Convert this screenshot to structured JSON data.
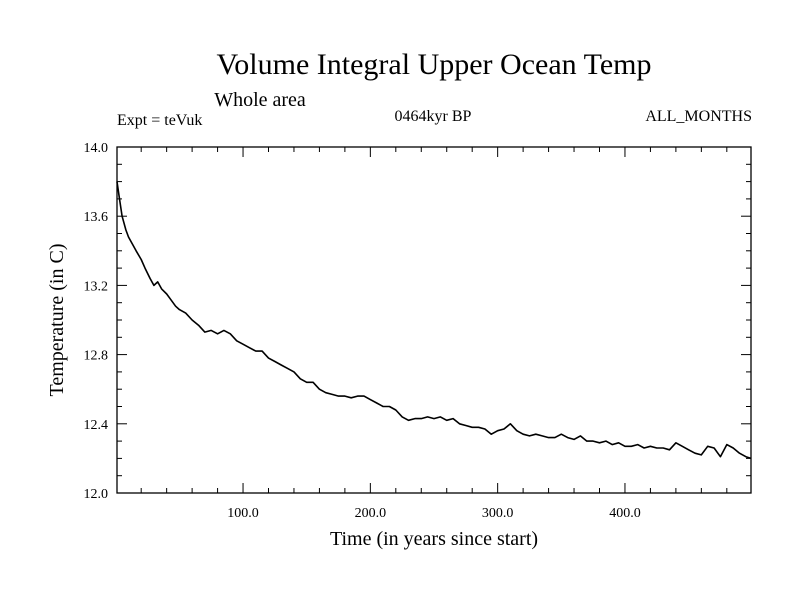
{
  "chart_data": {
    "type": "line",
    "title": "Volume Integral Upper Ocean Temp",
    "subtitle": "Whole area",
    "experiment": "Expt = teVuk",
    "period": "0464kyr BP",
    "months": "ALL_MONTHS",
    "xlabel": "Time (in years since start)",
    "ylabel": "Temperature (in C)",
    "xlim": [
      1,
      499
    ],
    "ylim": [
      12.0,
      14.0
    ],
    "x_ticks": [
      100,
      200,
      300,
      400
    ],
    "x_tick_labels": [
      "100.0",
      "200.0",
      "300.0",
      "400.0"
    ],
    "y_ticks": [
      12.0,
      12.4,
      12.8,
      13.2,
      13.6,
      14.0
    ],
    "y_tick_labels": [
      "12.0",
      "12.4",
      "12.8",
      "13.2",
      "13.6",
      "14.0"
    ],
    "grid": false,
    "series": [
      {
        "x": [
          1,
          3,
          5,
          8,
          10,
          13,
          16,
          20,
          23,
          27,
          30,
          33,
          36,
          40,
          43,
          47,
          50,
          55,
          60,
          65,
          70,
          75,
          80,
          85,
          90,
          95,
          100,
          105,
          110,
          115,
          120,
          125,
          130,
          135,
          140,
          145,
          150,
          155,
          160,
          165,
          170,
          175,
          180,
          185,
          190,
          195,
          200,
          205,
          210,
          215,
          220,
          225,
          230,
          235,
          240,
          245,
          250,
          255,
          260,
          265,
          270,
          275,
          280,
          285,
          290,
          295,
          300,
          305,
          310,
          315,
          320,
          325,
          330,
          335,
          340,
          345,
          350,
          355,
          360,
          365,
          370,
          375,
          380,
          385,
          390,
          395,
          400,
          405,
          410,
          415,
          420,
          425,
          430,
          435,
          440,
          445,
          450,
          455,
          460,
          465,
          470,
          475,
          480,
          485,
          490,
          495,
          499
        ],
        "y": [
          13.8,
          13.7,
          13.6,
          13.52,
          13.48,
          13.44,
          13.4,
          13.35,
          13.3,
          13.24,
          13.2,
          13.22,
          13.18,
          13.15,
          13.12,
          13.08,
          13.06,
          13.04,
          13.0,
          12.97,
          12.93,
          12.94,
          12.92,
          12.94,
          12.92,
          12.88,
          12.86,
          12.84,
          12.82,
          12.82,
          12.78,
          12.76,
          12.74,
          12.72,
          12.7,
          12.66,
          12.64,
          12.64,
          12.6,
          12.58,
          12.57,
          12.56,
          12.56,
          12.55,
          12.56,
          12.56,
          12.54,
          12.52,
          12.5,
          12.5,
          12.48,
          12.44,
          12.42,
          12.43,
          12.43,
          12.44,
          12.43,
          12.44,
          12.42,
          12.43,
          12.4,
          12.39,
          12.38,
          12.38,
          12.37,
          12.34,
          12.36,
          12.37,
          12.4,
          12.36,
          12.34,
          12.33,
          12.34,
          12.33,
          12.32,
          12.32,
          12.34,
          12.32,
          12.31,
          12.33,
          12.3,
          12.3,
          12.29,
          12.3,
          12.28,
          12.29,
          12.27,
          12.27,
          12.28,
          12.26,
          12.27,
          12.26,
          12.26,
          12.25,
          12.29,
          12.27,
          12.25,
          12.23,
          12.22,
          12.27,
          12.26,
          12.21,
          12.28,
          12.26,
          12.23,
          12.21,
          12.2
        ]
      }
    ]
  }
}
